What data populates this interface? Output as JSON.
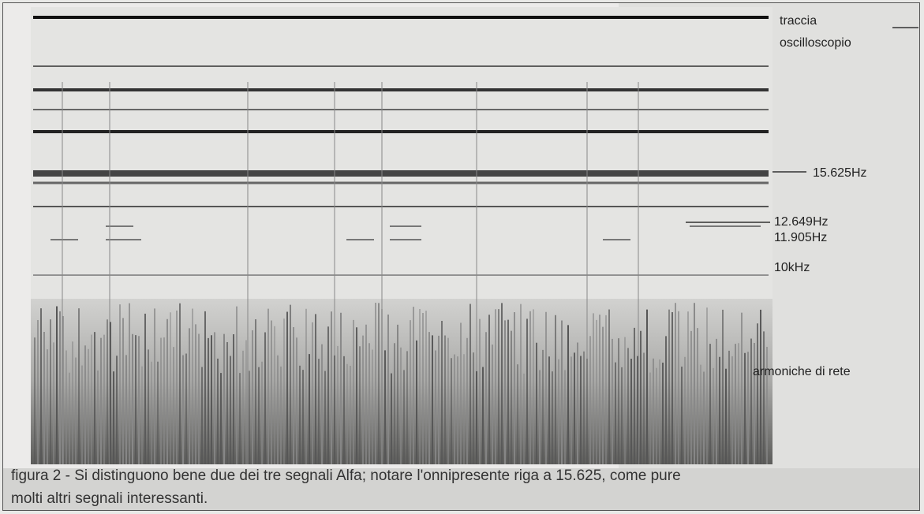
{
  "figure": {
    "labels": {
      "trace_line1": "traccia",
      "trace_line2": "oscilloscopio",
      "f1": "15.625Hz",
      "f2": "12.649Hz",
      "f3": "11.905Hz",
      "f4": "10kHz",
      "mains": "armoniche di rete"
    }
  },
  "caption": {
    "lines": [
      "figura 2 - Si distinguono bene due dei tre segnali Alfa; notare l'onnipresente riga a 15.625, come pure",
      "molti altri segnali interessanti."
    ]
  }
}
